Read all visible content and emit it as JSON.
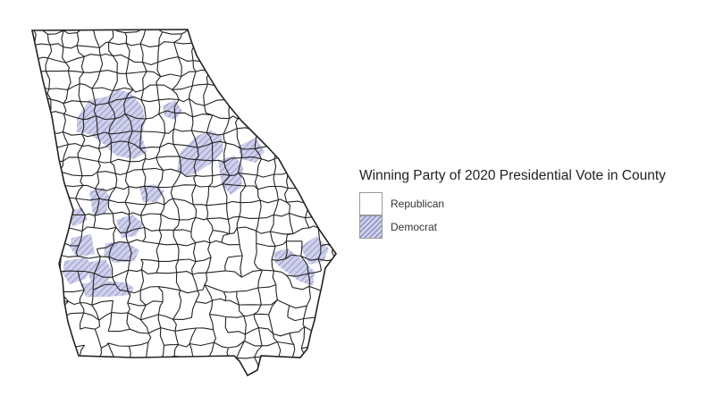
{
  "legend": {
    "title": "Winning Party of 2020 Presidential Vote in County",
    "items": [
      {
        "label": "Republican",
        "party": "Republican"
      },
      {
        "label": "Democrat",
        "party": "Democrat"
      }
    ]
  },
  "colors": {
    "republican_fill": "#ffffff",
    "democrat_fill": "#cfd0ea",
    "democrat_hatch": "#7a7db8",
    "county_border": "#222222"
  }
}
